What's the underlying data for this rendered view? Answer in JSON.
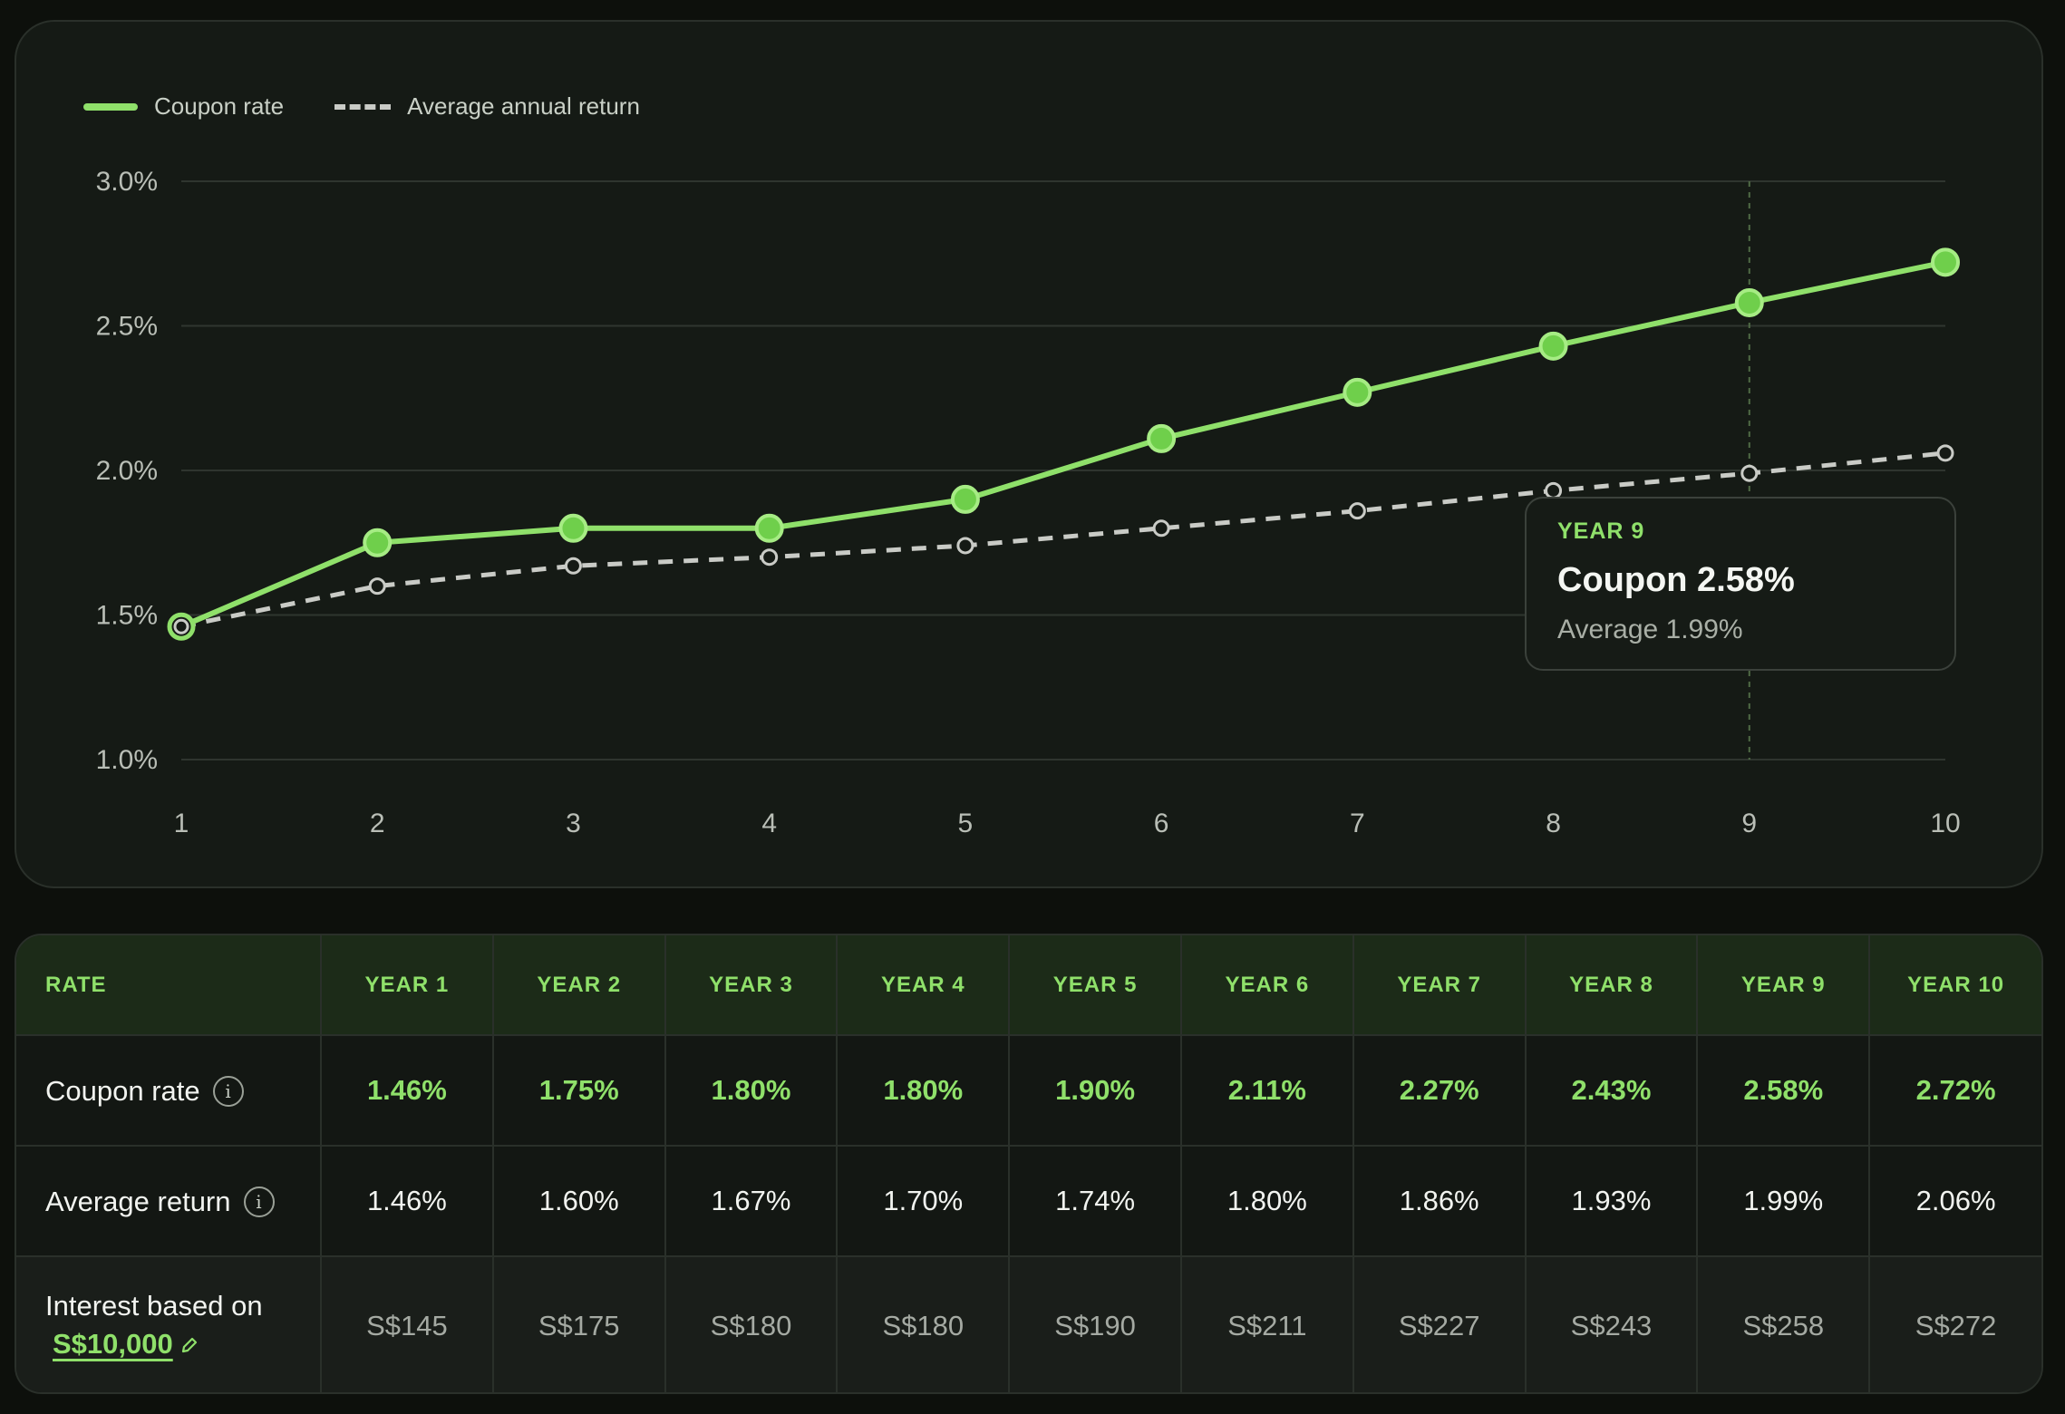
{
  "legend": {
    "coupon": "Coupon rate",
    "average": "Average annual return"
  },
  "colors": {
    "coupon": "#8fe06a",
    "average": "#c9cbc6",
    "grid": "#2f352f",
    "axis_text": "#b9beb6"
  },
  "chart_data": {
    "type": "line",
    "x": [
      1,
      2,
      3,
      4,
      5,
      6,
      7,
      8,
      9,
      10
    ],
    "series": [
      {
        "name": "Coupon rate",
        "values": [
          1.46,
          1.75,
          1.8,
          1.8,
          1.9,
          2.11,
          2.27,
          2.43,
          2.58,
          2.72
        ],
        "style": "solid"
      },
      {
        "name": "Average annual return",
        "values": [
          1.46,
          1.6,
          1.67,
          1.7,
          1.74,
          1.8,
          1.86,
          1.93,
          1.99,
          2.06
        ],
        "style": "dashed"
      }
    ],
    "ylim": [
      1.0,
      3.0
    ],
    "yticks": [
      "1.0%",
      "1.5%",
      "2.0%",
      "2.5%",
      "3.0%"
    ],
    "ytick_values": [
      1.0,
      1.5,
      2.0,
      2.5,
      3.0
    ],
    "xticks": [
      "1",
      "2",
      "3",
      "4",
      "5",
      "6",
      "7",
      "8",
      "9",
      "10"
    ],
    "grid": true,
    "legend_position": "top-left",
    "highlight_x": 9
  },
  "tooltip": {
    "year": "YEAR 9",
    "coupon": "Coupon 2.58%",
    "average": "Average 1.99%"
  },
  "table": {
    "headers": [
      "RATE",
      "YEAR 1",
      "YEAR 2",
      "YEAR 3",
      "YEAR 4",
      "YEAR 5",
      "YEAR 6",
      "YEAR 7",
      "YEAR 8",
      "YEAR 9",
      "YEAR 10"
    ],
    "coupon_label": "Coupon rate",
    "coupon_values": [
      "1.46%",
      "1.75%",
      "1.80%",
      "1.80%",
      "1.90%",
      "2.11%",
      "2.27%",
      "2.43%",
      "2.58%",
      "2.72%"
    ],
    "average_label": "Average return",
    "average_values": [
      "1.46%",
      "1.60%",
      "1.67%",
      "1.70%",
      "1.74%",
      "1.80%",
      "1.86%",
      "1.93%",
      "1.99%",
      "2.06%"
    ],
    "interest_label": "Interest based on",
    "interest_amount": "S$10,000",
    "interest_values": [
      "S$145",
      "S$175",
      "S$180",
      "S$180",
      "S$190",
      "S$211",
      "S$227",
      "S$243",
      "S$258",
      "S$272"
    ],
    "info_icon": "i"
  }
}
